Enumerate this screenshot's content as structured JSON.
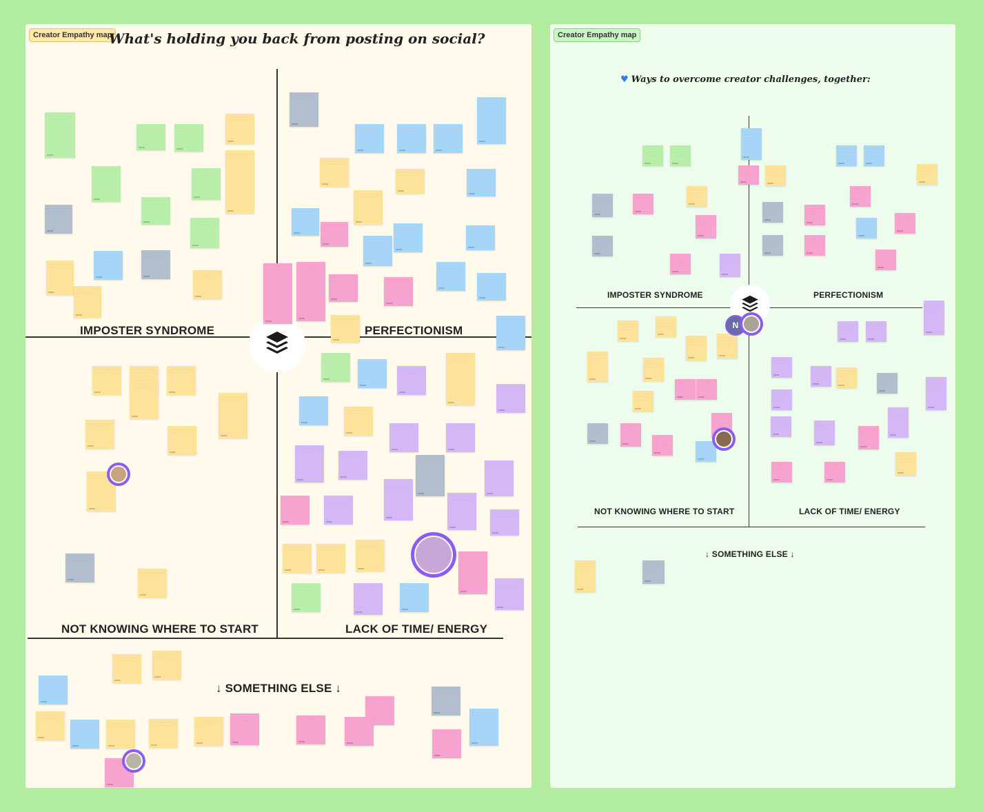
{
  "left_board": {
    "tag": "Creator Empathy map",
    "title": "What's holding you back from posting on social?",
    "quadrants": {
      "imposter": "IMPOSTER SYNDROME",
      "perfectionism": "PERFECTIONISM",
      "not_knowing": "NOT KNOWING WHERE TO START",
      "lack_of_time": "LACK OF TIME/ ENERGY",
      "something_else": "↓ SOMETHING ELSE ↓"
    }
  },
  "right_board": {
    "tag": "Creator Empathy map",
    "title": "Ways to overcome creator challenges, together:",
    "quadrants": {
      "imposter": "IMPOSTER SYNDROME",
      "perfectionism": "PERFECTIONISM",
      "not_knowing": "NOT KNOWING WHERE TO START",
      "lack_of_time": "LACK OF TIME/ ENERGY",
      "something_else": "↓ SOMETHING ELSE ↓"
    }
  },
  "colors": {
    "canvas": "#b1ec9f",
    "left_board_bg": "#fffaec",
    "right_board_bg": "#edfced",
    "sticky_yellow": "#fde29a",
    "sticky_green": "#b9eeaa",
    "sticky_blue": "#a6d5f7",
    "sticky_pink": "#f6a3cf",
    "sticky_violet": "#d4b8f6",
    "sticky_slate": "#b2bdce",
    "cursor_purple": "#8a5cf0"
  },
  "icons": {
    "logo": "buffer-logo-icon",
    "heart": "blue-heart-icon",
    "avatar": "collaborator-avatar"
  },
  "collaborator_initial": "N",
  "sticky_text": "· · · · · · · · · · · · · · · · · · · · · · · · · · · · · · · · · · · ·"
}
